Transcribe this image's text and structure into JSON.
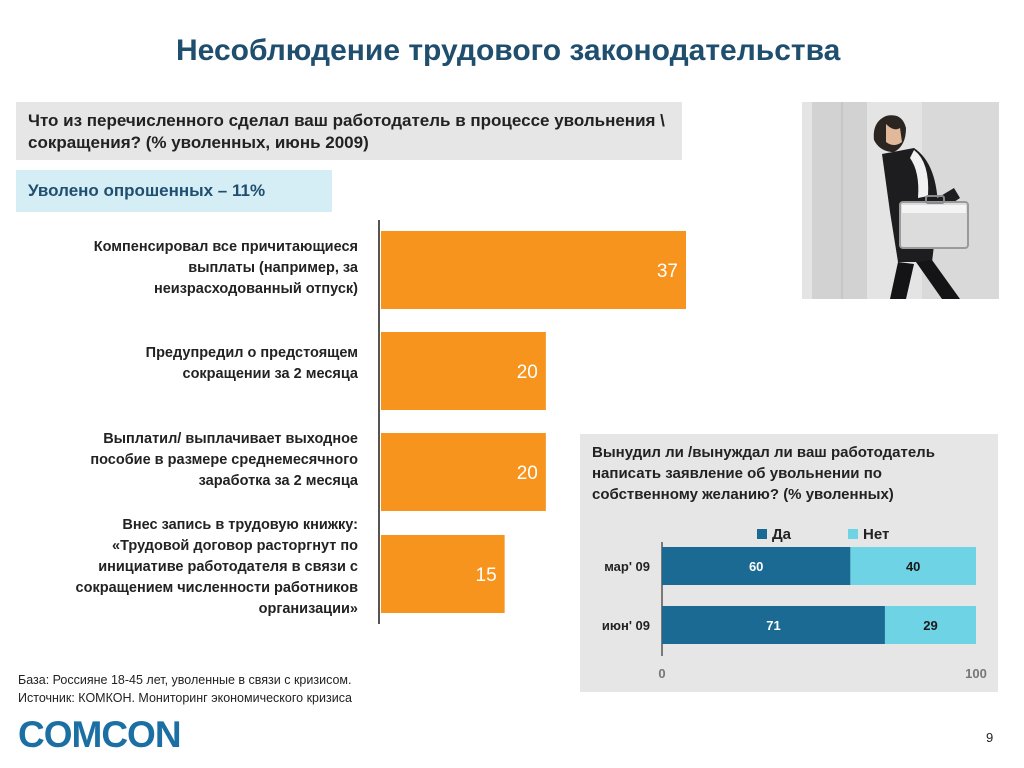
{
  "slide": {
    "title": "Несоблюдение трудового законодательства",
    "question": "Что из перечисленного сделал ваш работодатель в процессе увольнения \\ сокращения? (% уволенных, июнь 2009)",
    "fired_label": "Уволено опрошенных – 11%",
    "footnote_base": "База: Россияне 18-45 лет, уволенные в связи с кризисом.",
    "footnote_source": "Источник: КОМКОН. Мониторинг экономического кризиса",
    "logo_text": "COMCON",
    "page_number": "9",
    "photo_description": "man-with-briefcase-photo"
  },
  "colors": {
    "title": "#1f4e6e",
    "bar": "#f7941d",
    "bar_text": "#ffffff",
    "yes": "#1a6a94",
    "no": "#6fd3e6",
    "panel_bg": "#e6e6e6",
    "logo": "#1b6fa3"
  },
  "chart_data": [
    {
      "type": "bar",
      "orientation": "horizontal",
      "categories": [
        "Компенсировал все причитающиеся выплаты (например, за неизрасходованный отпуск)",
        "Предупредил о предстоящем сокращении за 2 месяца",
        "Выплатил/ выплачивает выходное пособие в размере среднемесячного заработка за 2 месяца",
        "Внес запись в трудовую книжку: «Трудовой договор расторгнут по инициативе работодателя в связи с сокращением численности работников организации»"
      ],
      "category_lines": [
        [
          "Компенсировал все причитающиеся",
          "выплаты (например, за",
          "неизрасходованный отпуск)"
        ],
        [
          "Предупредил о предстоящем",
          "сокращении за 2 месяца"
        ],
        [
          "Выплатил/ выплачивает выходное",
          "пособие в размере среднемесячного",
          "заработка за 2 месяца"
        ],
        [
          "Внес запись в трудовую книжку:",
          "«Трудовой договор расторгнут по",
          "инициативе работодателя в связи с",
          "сокращением численности работников",
          "организации»"
        ]
      ],
      "values": [
        37,
        20,
        20,
        15
      ],
      "data_labels": [
        "37",
        "20",
        "20",
        "15"
      ],
      "xlim": [
        0,
        37
      ],
      "grid": false,
      "legend": "none"
    },
    {
      "type": "bar",
      "orientation": "horizontal",
      "stacked": true,
      "title": "Вынудил ли /вынуждал ли ваш работодатель написать заявление об увольнении по собственному желанию? (% уволенных)",
      "title_lines": [
        "Вынудил ли /вынуждал ли ваш работодатель",
        "написать заявление об увольнении по",
        "собственному желанию? (% уволенных)"
      ],
      "categories": [
        "мар' 09",
        "июн' 09"
      ],
      "series": [
        {
          "name": "Да",
          "values": [
            60,
            71
          ]
        },
        {
          "name": "Нет",
          "values": [
            40,
            29
          ]
        }
      ],
      "xlim": [
        0,
        100
      ],
      "xticks": [
        "0",
        "100"
      ],
      "legend": "top"
    }
  ]
}
